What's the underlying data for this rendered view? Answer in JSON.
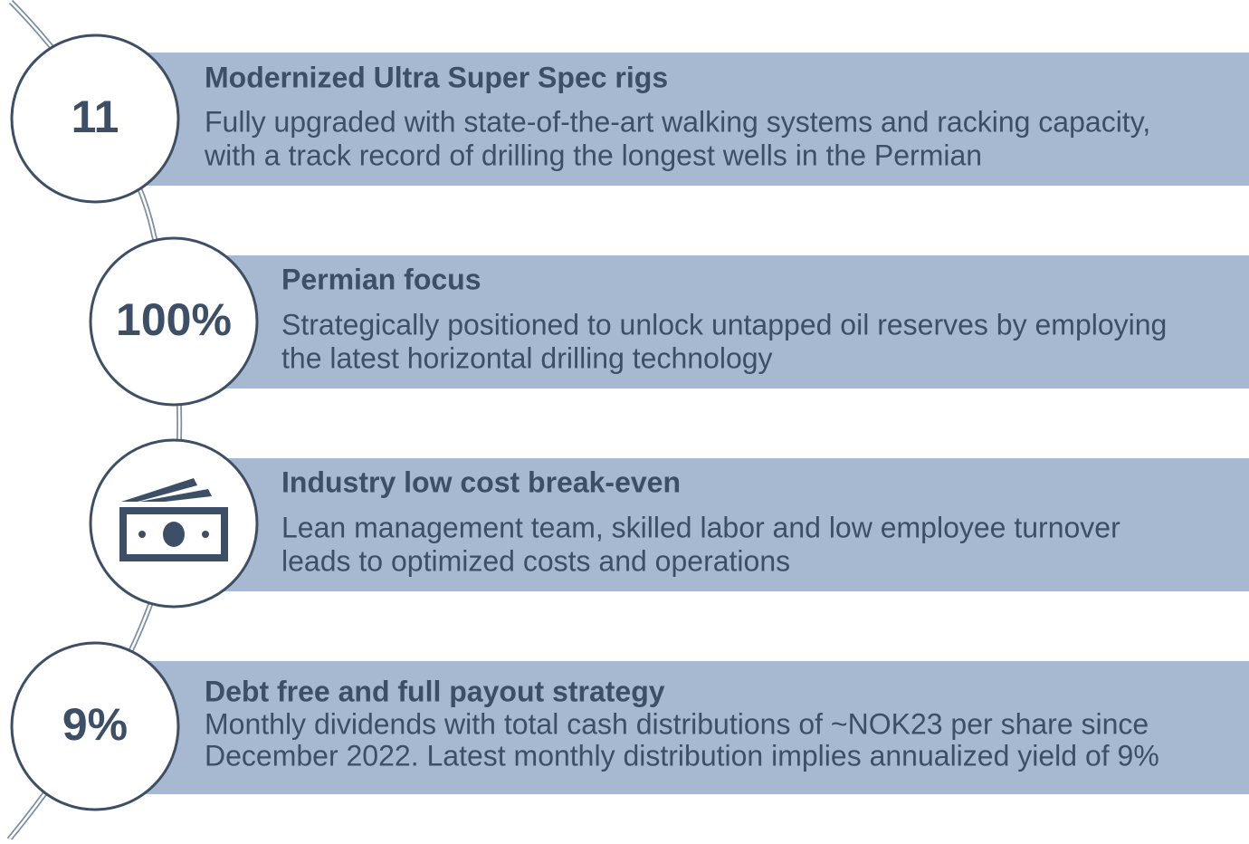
{
  "items": [
    {
      "badge": "11",
      "title": "Modernized Ultra Super Spec rigs",
      "description_lines": [
        "Fully upgraded with state-of-the-art walking systems and racking capacity,",
        "with a track record of drilling the longest wells in the Permian"
      ]
    },
    {
      "badge": "100%",
      "title": "Permian focus",
      "description_lines": [
        "Strategically positioned to unlock untapped oil reserves by employing",
        "the latest horizontal drilling technology"
      ]
    },
    {
      "title": "Industry low cost break-even",
      "description_lines": [
        "Lean management team, skilled labor and low employee turnover",
        "leads to optimized costs and operations"
      ]
    },
    {
      "badge": "9%",
      "title": "Debt free and full payout strategy",
      "description_lines": [
        "Monthly dividends with total cash distributions of ~NOK23 per share since",
        "December 2022. Latest monthly distribution implies annualized yield of 9%"
      ]
    }
  ]
}
